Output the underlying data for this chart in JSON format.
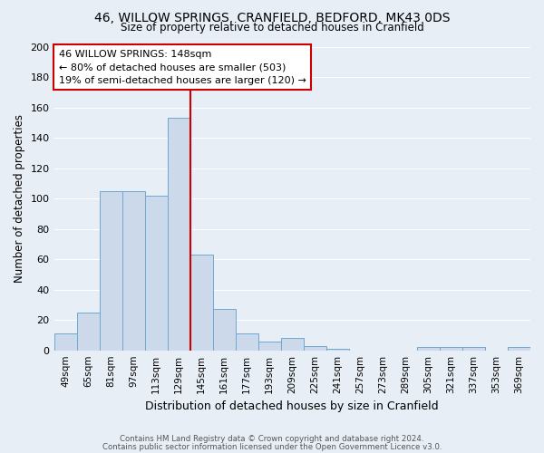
{
  "title": "46, WILLOW SPRINGS, CRANFIELD, BEDFORD, MK43 0DS",
  "subtitle": "Size of property relative to detached houses in Cranfield",
  "xlabel": "Distribution of detached houses by size in Cranfield",
  "ylabel": "Number of detached properties",
  "bar_color": "#ccd9ea",
  "bar_edge_color": "#6fa8d0",
  "background_color": "#e8eef6",
  "grid_color": "#ffffff",
  "categories": [
    "49sqm",
    "65sqm",
    "81sqm",
    "97sqm",
    "113sqm",
    "129sqm",
    "145sqm",
    "161sqm",
    "177sqm",
    "193sqm",
    "209sqm",
    "225sqm",
    "241sqm",
    "257sqm",
    "273sqm",
    "289sqm",
    "305sqm",
    "321sqm",
    "337sqm",
    "353sqm",
    "369sqm"
  ],
  "values": [
    11,
    25,
    105,
    105,
    102,
    153,
    63,
    27,
    11,
    6,
    8,
    3,
    1,
    0,
    0,
    0,
    2,
    2,
    2,
    0,
    2
  ],
  "ylim": [
    0,
    200
  ],
  "yticks": [
    0,
    20,
    40,
    60,
    80,
    100,
    120,
    140,
    160,
    180,
    200
  ],
  "vline_x_index": 6,
  "vline_color": "#cc0000",
  "annotation_title": "46 WILLOW SPRINGS: 148sqm",
  "annotation_line1": "← 80% of detached houses are smaller (503)",
  "annotation_line2": "19% of semi-detached houses are larger (120) →",
  "annotation_box_color": "#ffffff",
  "annotation_box_edge": "#cc0000",
  "footer1": "Contains HM Land Registry data © Crown copyright and database right 2024.",
  "footer2": "Contains public sector information licensed under the Open Government Licence v3.0."
}
